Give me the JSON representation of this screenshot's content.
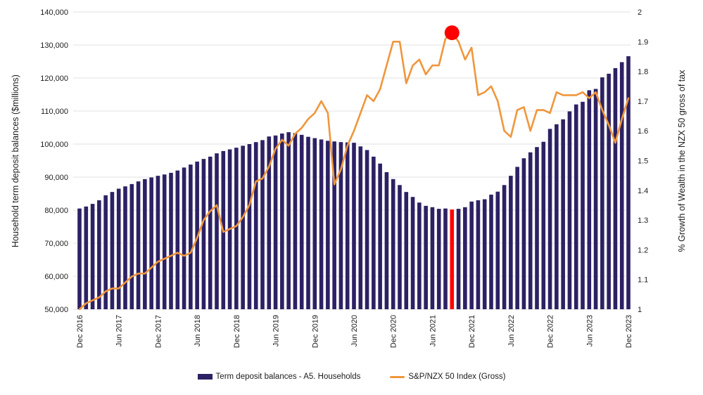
{
  "chart_data": {
    "type": "combo-bar-line",
    "background": "#FFFFFF",
    "grid_color": "#E2E2E2",
    "text_color": "#1C1C1C",
    "months": [
      "Dec 2016",
      "Jan 2017",
      "Feb 2017",
      "Mar 2017",
      "Apr 2017",
      "May 2017",
      "Jun 2017",
      "Jul 2017",
      "Aug 2017",
      "Sep 2017",
      "Oct 2017",
      "Nov 2017",
      "Dec 2017",
      "Jan 2018",
      "Feb 2018",
      "Mar 2018",
      "Apr 2018",
      "May 2018",
      "Jun 2018",
      "Jul 2018",
      "Aug 2018",
      "Sep 2018",
      "Oct 2018",
      "Nov 2018",
      "Dec 2018",
      "Jan 2019",
      "Feb 2019",
      "Mar 2019",
      "Apr 2019",
      "May 2019",
      "Jun 2019",
      "Jul 2019",
      "Aug 2019",
      "Sep 2019",
      "Oct 2019",
      "Nov 2019",
      "Dec 2019",
      "Jan 2020",
      "Feb 2020",
      "Mar 2020",
      "Apr 2020",
      "May 2020",
      "Jun 2020",
      "Jul 2020",
      "Aug 2020",
      "Sep 2020",
      "Oct 2020",
      "Nov 2020",
      "Dec 2020",
      "Jan 2021",
      "Feb 2021",
      "Mar 2021",
      "Apr 2021",
      "May 2021",
      "Jun 2021",
      "Jul 2021",
      "Aug 2021",
      "Sep 2021",
      "Oct 2021",
      "Nov 2021",
      "Dec 2021",
      "Jan 2022",
      "Feb 2022",
      "Mar 2022",
      "Apr 2022",
      "May 2022",
      "Jun 2022",
      "Jul 2022",
      "Aug 2022",
      "Sep 2022",
      "Oct 2022",
      "Nov 2022",
      "Dec 2022",
      "Jan 2023",
      "Feb 2023",
      "Mar 2023",
      "Apr 2023",
      "May 2023",
      "Jun 2023",
      "Jul 2023",
      "Aug 2023",
      "Sep 2023",
      "Oct 2023",
      "Nov 2023",
      "Dec 2023"
    ],
    "x_tick_every": 6,
    "x_tick_labels": [
      "Dec 2016",
      "Jun 2017",
      "Dec 2017",
      "Jun 2018",
      "Dec 2018",
      "Jun 2019",
      "Dec 2019",
      "Jun 2020",
      "Dec 2020",
      "Jun 2021",
      "Dec 2021",
      "Jun 2022",
      "Dec 2022",
      "Jun 2023",
      "Dec 2023"
    ],
    "series": [
      {
        "name": "Term deposit balances - A5. Households",
        "type": "bar",
        "axis": "left",
        "color": "#2D2164",
        "values": [
          80500,
          81100,
          81900,
          83000,
          84500,
          85500,
          86500,
          87200,
          87900,
          88700,
          89400,
          89900,
          90400,
          90800,
          91300,
          92000,
          92900,
          93800,
          94700,
          95500,
          96200,
          97200,
          97900,
          98400,
          98900,
          99500,
          100000,
          100600,
          101200,
          102300,
          102600,
          103200,
          103600,
          103300,
          102800,
          102200,
          101800,
          101400,
          101000,
          100800,
          100600,
          100500,
          100400,
          99300,
          98200,
          96200,
          94100,
          91500,
          89400,
          87600,
          85500,
          84000,
          82300,
          81300,
          80900,
          80400,
          80500,
          80200,
          80400,
          80900,
          82600,
          83000,
          83300,
          84700,
          85600,
          87600,
          90400,
          93100,
          95700,
          97500,
          99100,
          100700,
          104600,
          106000,
          107500,
          109900,
          112000,
          112800,
          116300,
          116700,
          120200,
          121300,
          123000,
          124800,
          126600
        ]
      },
      {
        "name": "S&P/NZX 50 Index (Gross)",
        "type": "line",
        "axis": "right",
        "color": "#F0963C",
        "values": [
          1.0,
          1.02,
          1.03,
          1.04,
          1.06,
          1.07,
          1.07,
          1.09,
          1.11,
          1.12,
          1.12,
          1.14,
          1.16,
          1.17,
          1.18,
          1.19,
          1.18,
          1.19,
          1.24,
          1.3,
          1.33,
          1.35,
          1.26,
          1.27,
          1.28,
          1.31,
          1.35,
          1.43,
          1.44,
          1.48,
          1.54,
          1.57,
          1.55,
          1.59,
          1.61,
          1.64,
          1.66,
          1.7,
          1.66,
          1.42,
          1.47,
          1.55,
          1.6,
          1.66,
          1.72,
          1.7,
          1.74,
          1.82,
          1.9,
          1.9,
          1.76,
          1.82,
          1.84,
          1.79,
          1.82,
          1.82,
          1.91,
          1.93,
          1.9,
          1.84,
          1.88,
          1.72,
          1.73,
          1.75,
          1.7,
          1.6,
          1.58,
          1.67,
          1.68,
          1.6,
          1.67,
          1.67,
          1.66,
          1.73,
          1.72,
          1.72,
          1.72,
          1.73,
          1.71,
          1.73,
          1.67,
          1.62,
          1.56,
          1.64,
          1.71
        ]
      }
    ],
    "highlight": {
      "month": "Sep 2021",
      "index": 57,
      "bar_color": "#FF0000",
      "marker_value": 1.93,
      "marker_color": "#FF0000"
    },
    "left_axis": {
      "title": "Household term deposit balances ($millions)",
      "min": 50000,
      "max": 140000,
      "tick_step": 10000,
      "tick_labels": [
        "140,000",
        "130,000",
        "120,000",
        "110,000",
        "100,000",
        "90,000",
        "80,000",
        "70,000",
        "60,000",
        "50,000"
      ]
    },
    "right_axis": {
      "title": "% Growth of Wealth in the NZX 50 gross of tax",
      "min": 1,
      "max": 2,
      "tick_step": 0.1,
      "tick_labels": [
        "2",
        "1.9",
        "1.8",
        "1.7",
        "1.6",
        "1.5",
        "1.4",
        "1.3",
        "1.2",
        "1.1",
        "1"
      ]
    }
  },
  "legend": {
    "items": [
      {
        "label": "Term deposit balances - A5. Households",
        "color": "#2D2164",
        "shape": "bar"
      },
      {
        "label": "S&P/NZX 50 Index (Gross)",
        "color": "#F0963C",
        "shape": "line"
      }
    ]
  }
}
